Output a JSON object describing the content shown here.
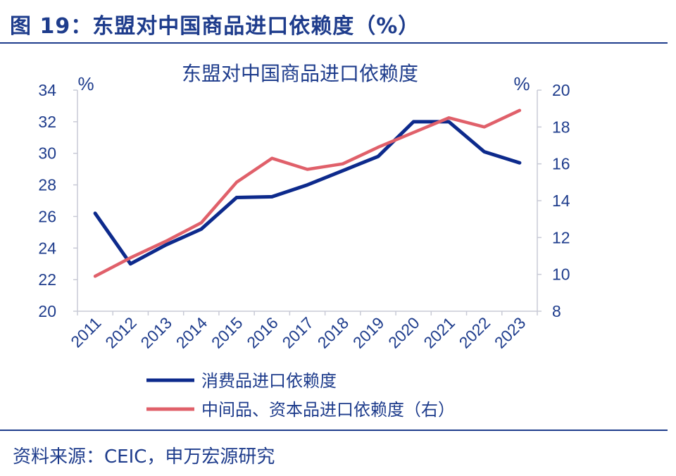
{
  "figure_title": "图 19：东盟对中国商品进口依赖度（%）",
  "source": "资料来源：CEIC，申万宏源研究",
  "chart_data": {
    "type": "line",
    "title": "东盟对中国商品进口依赖度",
    "left_unit": "%",
    "right_unit": "%",
    "categories": [
      "2011",
      "2012",
      "2013",
      "2014",
      "2015",
      "2016",
      "2017",
      "2018",
      "2019",
      "2020",
      "2021",
      "2022",
      "2023"
    ],
    "y_left": {
      "min": 20,
      "max": 34,
      "ticks": [
        20,
        22,
        24,
        26,
        28,
        30,
        32,
        34
      ]
    },
    "y_right": {
      "min": 8,
      "max": 20,
      "ticks": [
        8,
        10,
        12,
        14,
        16,
        18,
        20
      ]
    },
    "grid": false,
    "legend_position": "bottom",
    "series": [
      {
        "name": "消费品进口依赖度",
        "axis": "left",
        "color": "#0d2a8c",
        "values": [
          26.2,
          23.0,
          24.2,
          25.2,
          27.2,
          27.25,
          28.0,
          28.9,
          29.8,
          32.0,
          32.0,
          30.1,
          29.4
        ]
      },
      {
        "name": "中间品、资本品进口依赖度（右）",
        "axis": "right",
        "color": "#e0606a",
        "values": [
          9.9,
          10.9,
          11.8,
          12.8,
          15.0,
          16.3,
          15.7,
          16.0,
          16.9,
          17.7,
          18.5,
          18.0,
          18.9
        ]
      }
    ]
  }
}
